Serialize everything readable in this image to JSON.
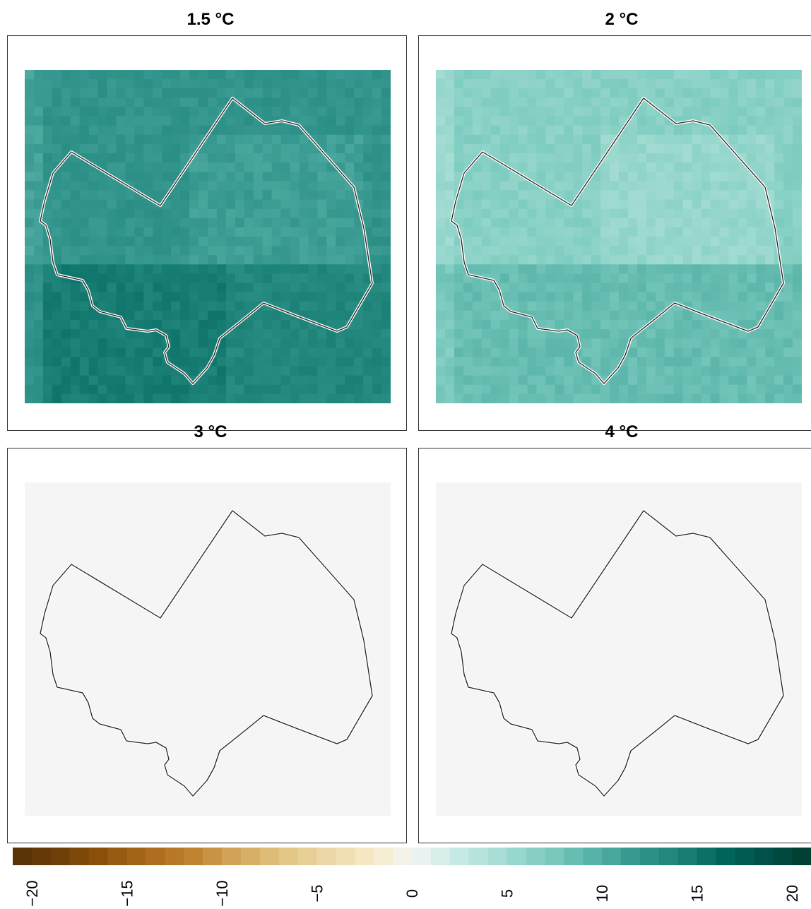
{
  "chart_data": {
    "type": "heatmap",
    "panels": [
      {
        "title": "1.5 °C",
        "base_value": 12.5,
        "band_split": "upper-lower",
        "upper_value": 12.0,
        "lower_value": 13.5,
        "lower_left_value": 14.5
      },
      {
        "title": "2 °C",
        "base_value": 7.5,
        "band_split": "upper-lower",
        "upper_value": 6.5,
        "lower_value": 8.5,
        "lower_left_value": 8.5
      },
      {
        "title": "3 °C",
        "base_value": 0
      },
      {
        "title": "4 °C",
        "base_value": 0
      }
    ],
    "colorbar": {
      "min": -21,
      "max": 21,
      "tick_labels": [
        "−20",
        "−15",
        "−10",
        "−5",
        "0",
        "5",
        "10",
        "15",
        "20"
      ],
      "tick_values": [
        -20,
        -15,
        -10,
        -5,
        0,
        5,
        10,
        15,
        20
      ],
      "colors": [
        "#543005",
        "#6e3f0a",
        "#8c510a",
        "#a8691b",
        "#bf812d",
        "#d2a45a",
        "#dfc27d",
        "#ebd6a5",
        "#f6e8c3",
        "#f5f5f5",
        "#c7eae5",
        "#a6ddd4",
        "#80cdc1",
        "#5ab4a9",
        "#35978f",
        "#1d8379",
        "#01665e",
        "#014f47",
        "#003c30"
      ],
      "placement": "bottom"
    },
    "grid": false
  }
}
